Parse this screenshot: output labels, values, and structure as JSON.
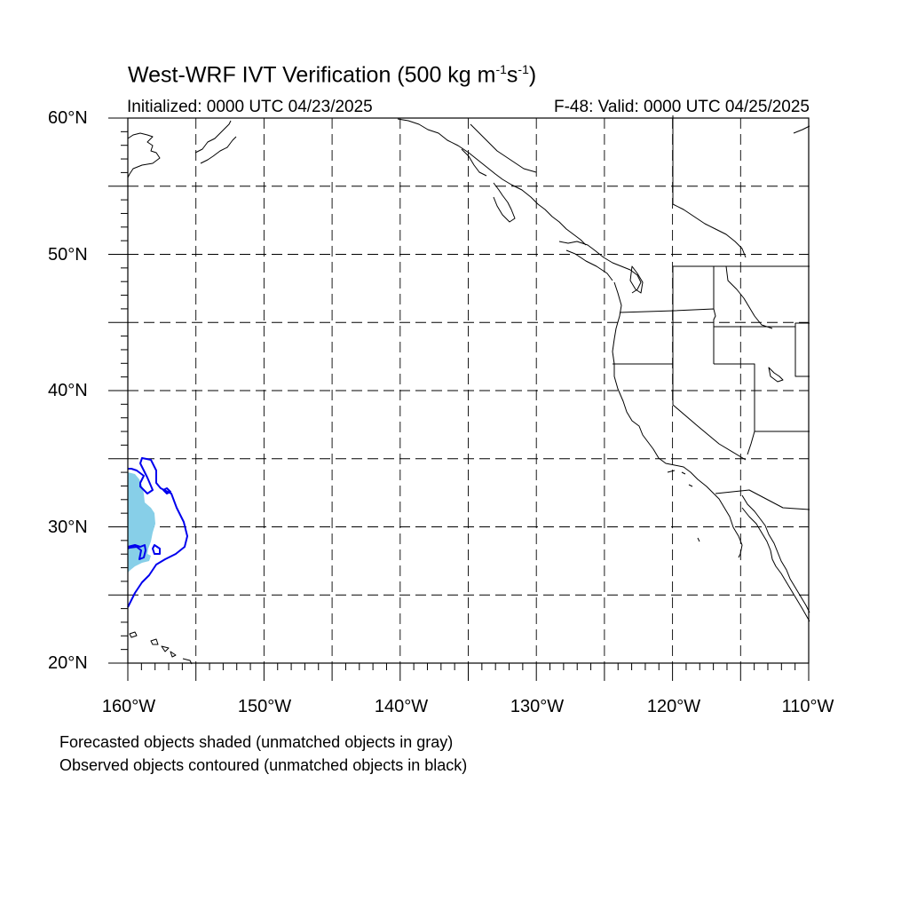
{
  "title": {
    "main": "West-WRF IVT Verification (500 kg m",
    "sup1": "-1",
    "mid": "s",
    "sup2": "-1",
    "end": ")"
  },
  "subtitle": {
    "left": "Initialized: 0000 UTC 04/23/2025",
    "right": "F-48: Valid: 0000 UTC 04/25/2025"
  },
  "axes": {
    "lon_range": [
      -160,
      -110
    ],
    "lat_range": [
      20,
      60
    ],
    "lat_labels": [
      "60°N",
      "50°N",
      "40°N",
      "30°N",
      "20°N"
    ],
    "lon_labels": [
      "160°W",
      "150°W",
      "140°W",
      "130°W",
      "120°W",
      "110°W"
    ],
    "grid": "dashed every 5 degrees"
  },
  "notes": {
    "line1": "Forecasted objects shaded (unmatched objects in gray)",
    "line2": "Observed objects contoured (unmatched objects in black)"
  },
  "colors": {
    "forecast_fill": "#87cfe8",
    "observed_contour": "#0000ee",
    "coastline": "#000000",
    "grid": "#000000"
  },
  "objects": [
    {
      "kind": "forecast",
      "matched": true,
      "approx_lon_range": [
        -160,
        -158
      ],
      "approx_lat_range": [
        26.5,
        34
      ]
    },
    {
      "kind": "observed",
      "matched": true,
      "approx_lon_range": [
        -160,
        -155.5
      ],
      "approx_lat_range": [
        24,
        35
      ]
    }
  ]
}
